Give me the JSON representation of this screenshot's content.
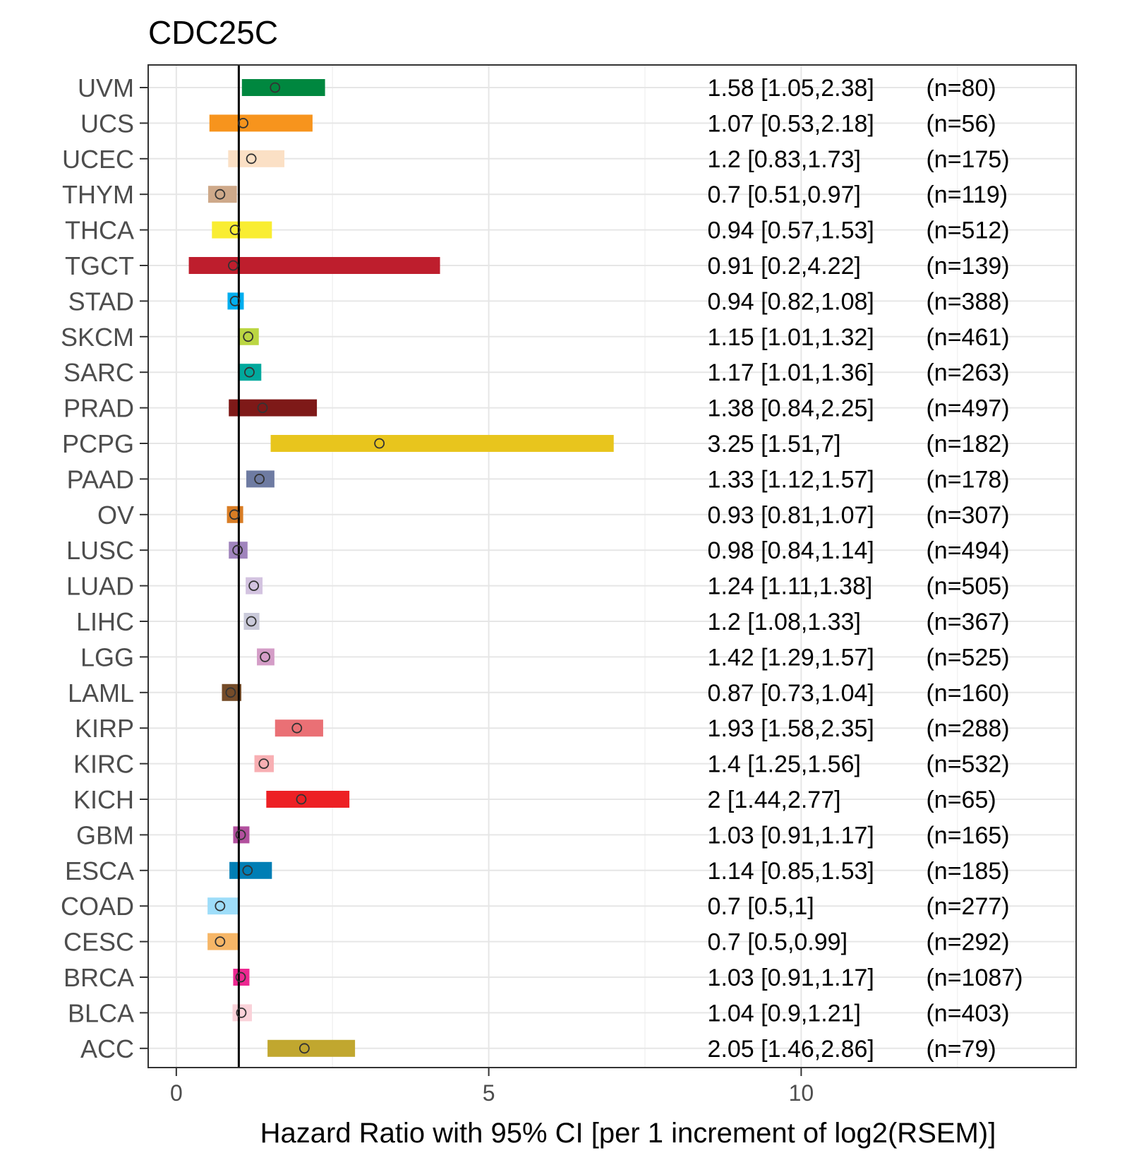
{
  "chart_data": {
    "type": "forest",
    "title": "CDC25C",
    "xlabel": "Hazard Ratio with 95% CI [per 1 increment of log2(RSEM)]",
    "ylabel": "",
    "xlim": [
      -0.45,
      14.4
    ],
    "x_ticks": [
      0,
      5,
      10
    ],
    "x_tick_labels": [
      "0",
      "5",
      "10"
    ],
    "x_minor_grid": [
      2.5,
      7.5,
      12.5
    ],
    "reference_line": 1,
    "grid": true,
    "rows": [
      {
        "label": "UVM",
        "hr": 1.58,
        "low": 1.05,
        "high": 2.38,
        "text": "1.58 [1.05,2.38]",
        "n": "(n=80)",
        "color": "#00873F"
      },
      {
        "label": "UCS",
        "hr": 1.07,
        "low": 0.53,
        "high": 2.18,
        "text": "1.07 [0.53,2.18]",
        "n": "(n=56)",
        "color": "#F7941D"
      },
      {
        "label": "UCEC",
        "hr": 1.2,
        "low": 0.83,
        "high": 1.73,
        "text": "1.2 [0.83,1.73]",
        "n": "(n=175)",
        "color": "#FBE0C5"
      },
      {
        "label": "THYM",
        "hr": 0.7,
        "low": 0.51,
        "high": 0.97,
        "text": "0.7 [0.51,0.97]",
        "n": "(n=119)",
        "color": "#CEA98A"
      },
      {
        "label": "THCA",
        "hr": 0.94,
        "low": 0.57,
        "high": 1.53,
        "text": "0.94 [0.57,1.53]",
        "n": "(n=512)",
        "color": "#F9ED32"
      },
      {
        "label": "TGCT",
        "hr": 0.91,
        "low": 0.2,
        "high": 4.22,
        "text": "0.91 [0.2,4.22]",
        "n": "(n=139)",
        "color": "#BE1E2D"
      },
      {
        "label": "STAD",
        "hr": 0.94,
        "low": 0.82,
        "high": 1.08,
        "text": "0.94 [0.82,1.08]",
        "n": "(n=388)",
        "color": "#00AEEF"
      },
      {
        "label": "SKCM",
        "hr": 1.15,
        "low": 1.01,
        "high": 1.32,
        "text": "1.15 [1.01,1.32]",
        "n": "(n=461)",
        "color": "#BBD642"
      },
      {
        "label": "SARC",
        "hr": 1.17,
        "low": 1.01,
        "high": 1.36,
        "text": "1.17 [1.01,1.36]",
        "n": "(n=263)",
        "color": "#00A99D"
      },
      {
        "label": "PRAD",
        "hr": 1.38,
        "low": 0.84,
        "high": 2.25,
        "text": "1.38 [0.84,2.25]",
        "n": "(n=497)",
        "color": "#7E1918"
      },
      {
        "label": "PCPG",
        "hr": 3.25,
        "low": 1.51,
        "high": 7,
        "text": "3.25 [1.51,7]",
        "n": "(n=182)",
        "color": "#E8C51D"
      },
      {
        "label": "PAAD",
        "hr": 1.33,
        "low": 1.12,
        "high": 1.57,
        "text": "1.33 [1.12,1.57]",
        "n": "(n=178)",
        "color": "#6E7BA2"
      },
      {
        "label": "OV",
        "hr": 0.93,
        "low": 0.81,
        "high": 1.07,
        "text": "0.93 [0.81,1.07]",
        "n": "(n=307)",
        "color": "#D97D25"
      },
      {
        "label": "LUSC",
        "hr": 0.98,
        "low": 0.84,
        "high": 1.14,
        "text": "0.98 [0.84,1.14]",
        "n": "(n=494)",
        "color": "#A084BD"
      },
      {
        "label": "LUAD",
        "hr": 1.24,
        "low": 1.11,
        "high": 1.38,
        "text": "1.24 [1.11,1.38]",
        "n": "(n=505)",
        "color": "#D3C3E0"
      },
      {
        "label": "LIHC",
        "hr": 1.2,
        "low": 1.08,
        "high": 1.33,
        "text": "1.2 [1.08,1.33]",
        "n": "(n=367)",
        "color": "#CACADA"
      },
      {
        "label": "LGG",
        "hr": 1.42,
        "low": 1.29,
        "high": 1.57,
        "text": "1.42 [1.29,1.57]",
        "n": "(n=525)",
        "color": "#D49DC7"
      },
      {
        "label": "LAML",
        "hr": 0.87,
        "low": 0.73,
        "high": 1.04,
        "text": "0.87 [0.73,1.04]",
        "n": "(n=160)",
        "color": "#754C29"
      },
      {
        "label": "KIRP",
        "hr": 1.93,
        "low": 1.58,
        "high": 2.35,
        "text": "1.93 [1.58,2.35]",
        "n": "(n=288)",
        "color": "#EA7075"
      },
      {
        "label": "KIRC",
        "hr": 1.4,
        "low": 1.25,
        "high": 1.56,
        "text": "1.4 [1.25,1.56]",
        "n": "(n=532)",
        "color": "#F8AFB3"
      },
      {
        "label": "KICH",
        "hr": 2,
        "low": 1.44,
        "high": 2.77,
        "text": "2 [1.44,2.77]",
        "n": "(n=65)",
        "color": "#ED2024"
      },
      {
        "label": "GBM",
        "hr": 1.03,
        "low": 0.91,
        "high": 1.17,
        "text": "1.03 [0.91,1.17]",
        "n": "(n=165)",
        "color": "#B2509E"
      },
      {
        "label": "ESCA",
        "hr": 1.14,
        "low": 0.85,
        "high": 1.53,
        "text": "1.14 [0.85,1.53]",
        "n": "(n=185)",
        "color": "#007EB5"
      },
      {
        "label": "COAD",
        "hr": 0.7,
        "low": 0.5,
        "high": 1,
        "text": "0.7 [0.5,1]",
        "n": "(n=277)",
        "color": "#9EDDF9"
      },
      {
        "label": "CESC",
        "hr": 0.7,
        "low": 0.5,
        "high": 0.99,
        "text": "0.7 [0.5,0.99]",
        "n": "(n=292)",
        "color": "#F6B667"
      },
      {
        "label": "BRCA",
        "hr": 1.03,
        "low": 0.91,
        "high": 1.17,
        "text": "1.03 [0.91,1.17]",
        "n": "(n=1087)",
        "color": "#ED2891"
      },
      {
        "label": "BLCA",
        "hr": 1.04,
        "low": 0.9,
        "high": 1.21,
        "text": "1.04 [0.9,1.21]",
        "n": "(n=403)",
        "color": "#FAD2D9"
      },
      {
        "label": "ACC",
        "hr": 2.05,
        "low": 1.46,
        "high": 2.86,
        "text": "2.05 [1.46,2.86]",
        "n": "(n=79)",
        "color": "#C1A72F"
      }
    ]
  }
}
